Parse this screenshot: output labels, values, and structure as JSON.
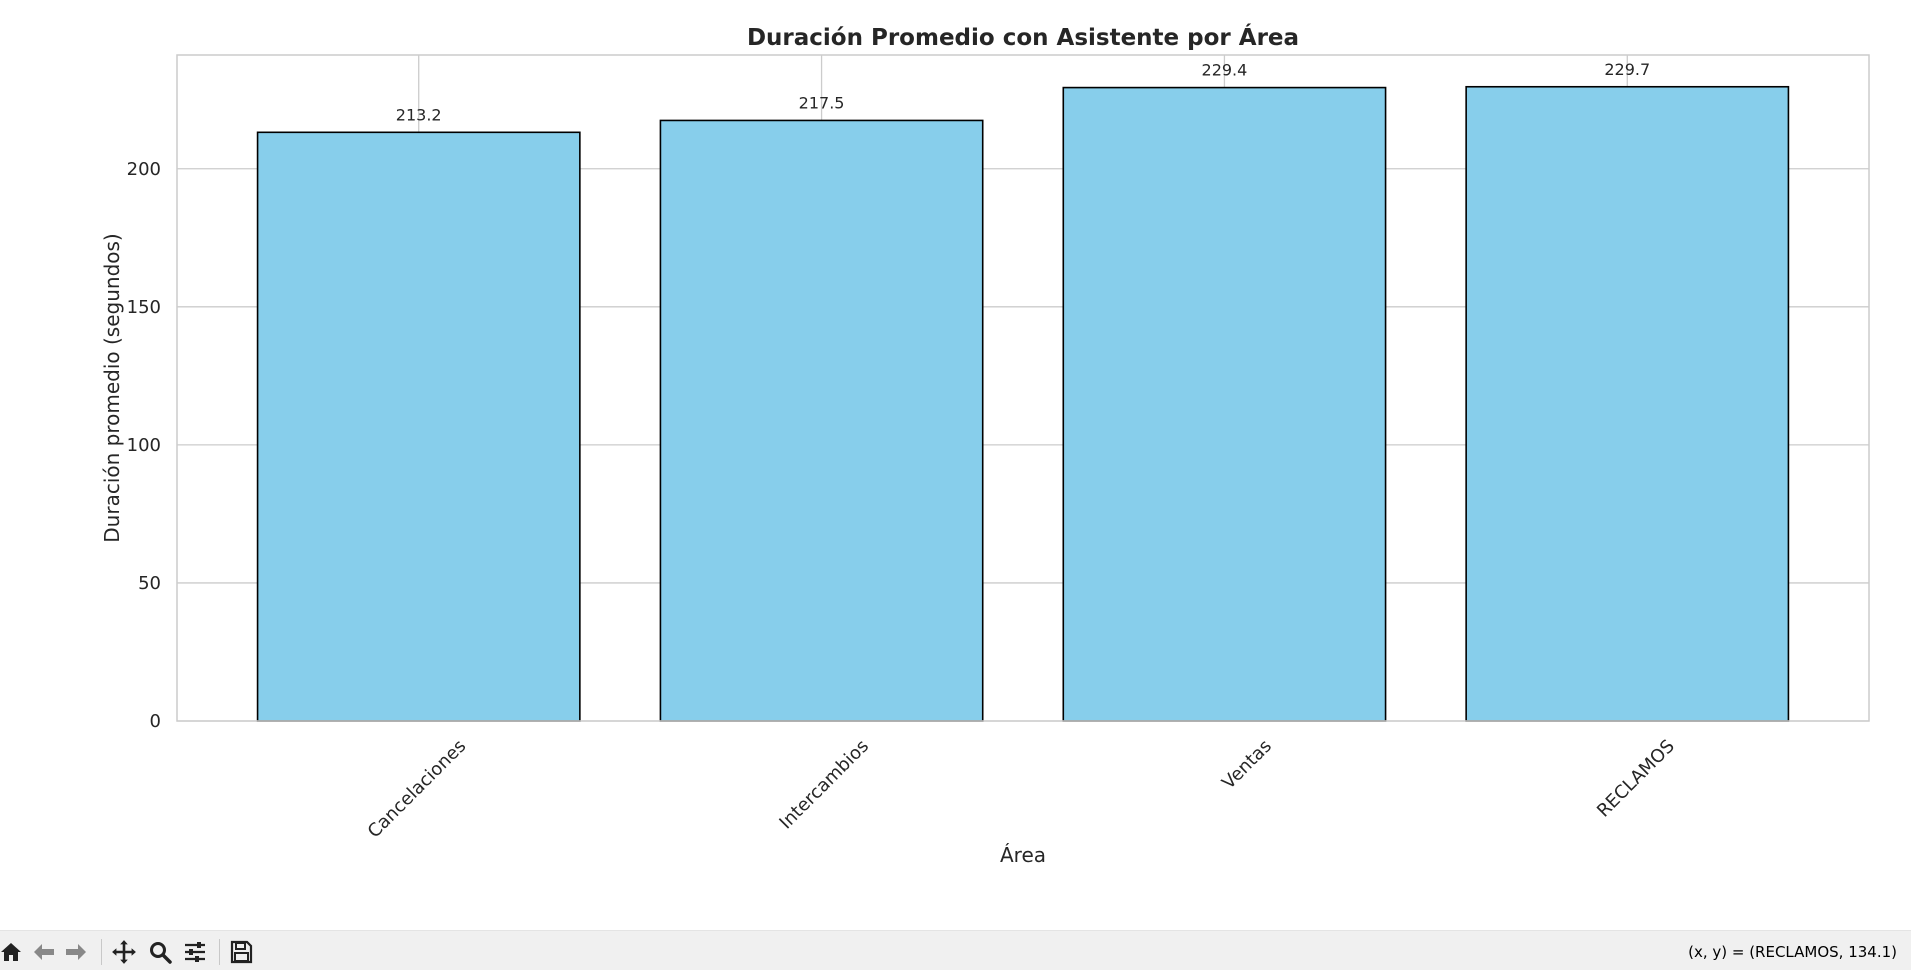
{
  "chart_data": {
    "type": "bar",
    "title": "Duración Promedio con Asistente por Área",
    "xlabel": "Área",
    "ylabel": "Duración promedio (segundos)",
    "categories": [
      "Cancelaciones",
      "Intercambios",
      "Ventas",
      "RECLAMOS"
    ],
    "values": [
      213.2,
      217.5,
      229.4,
      229.7
    ],
    "value_labels": [
      "213.2",
      "217.5",
      "229.4",
      "229.7"
    ],
    "ylim": [
      0,
      241.2
    ],
    "yticks": [
      0,
      50,
      100,
      150,
      200
    ],
    "grid": true,
    "bar_color": "#87CEEB",
    "bar_edge_color": "#000000"
  },
  "toolbar": {
    "coords": "(x, y) = (RECLAMOS, 134.1)",
    "buttons": [
      "home-icon",
      "back-icon",
      "forward-icon",
      "pan-icon",
      "zoom-icon",
      "configure-icon",
      "save-icon"
    ]
  }
}
